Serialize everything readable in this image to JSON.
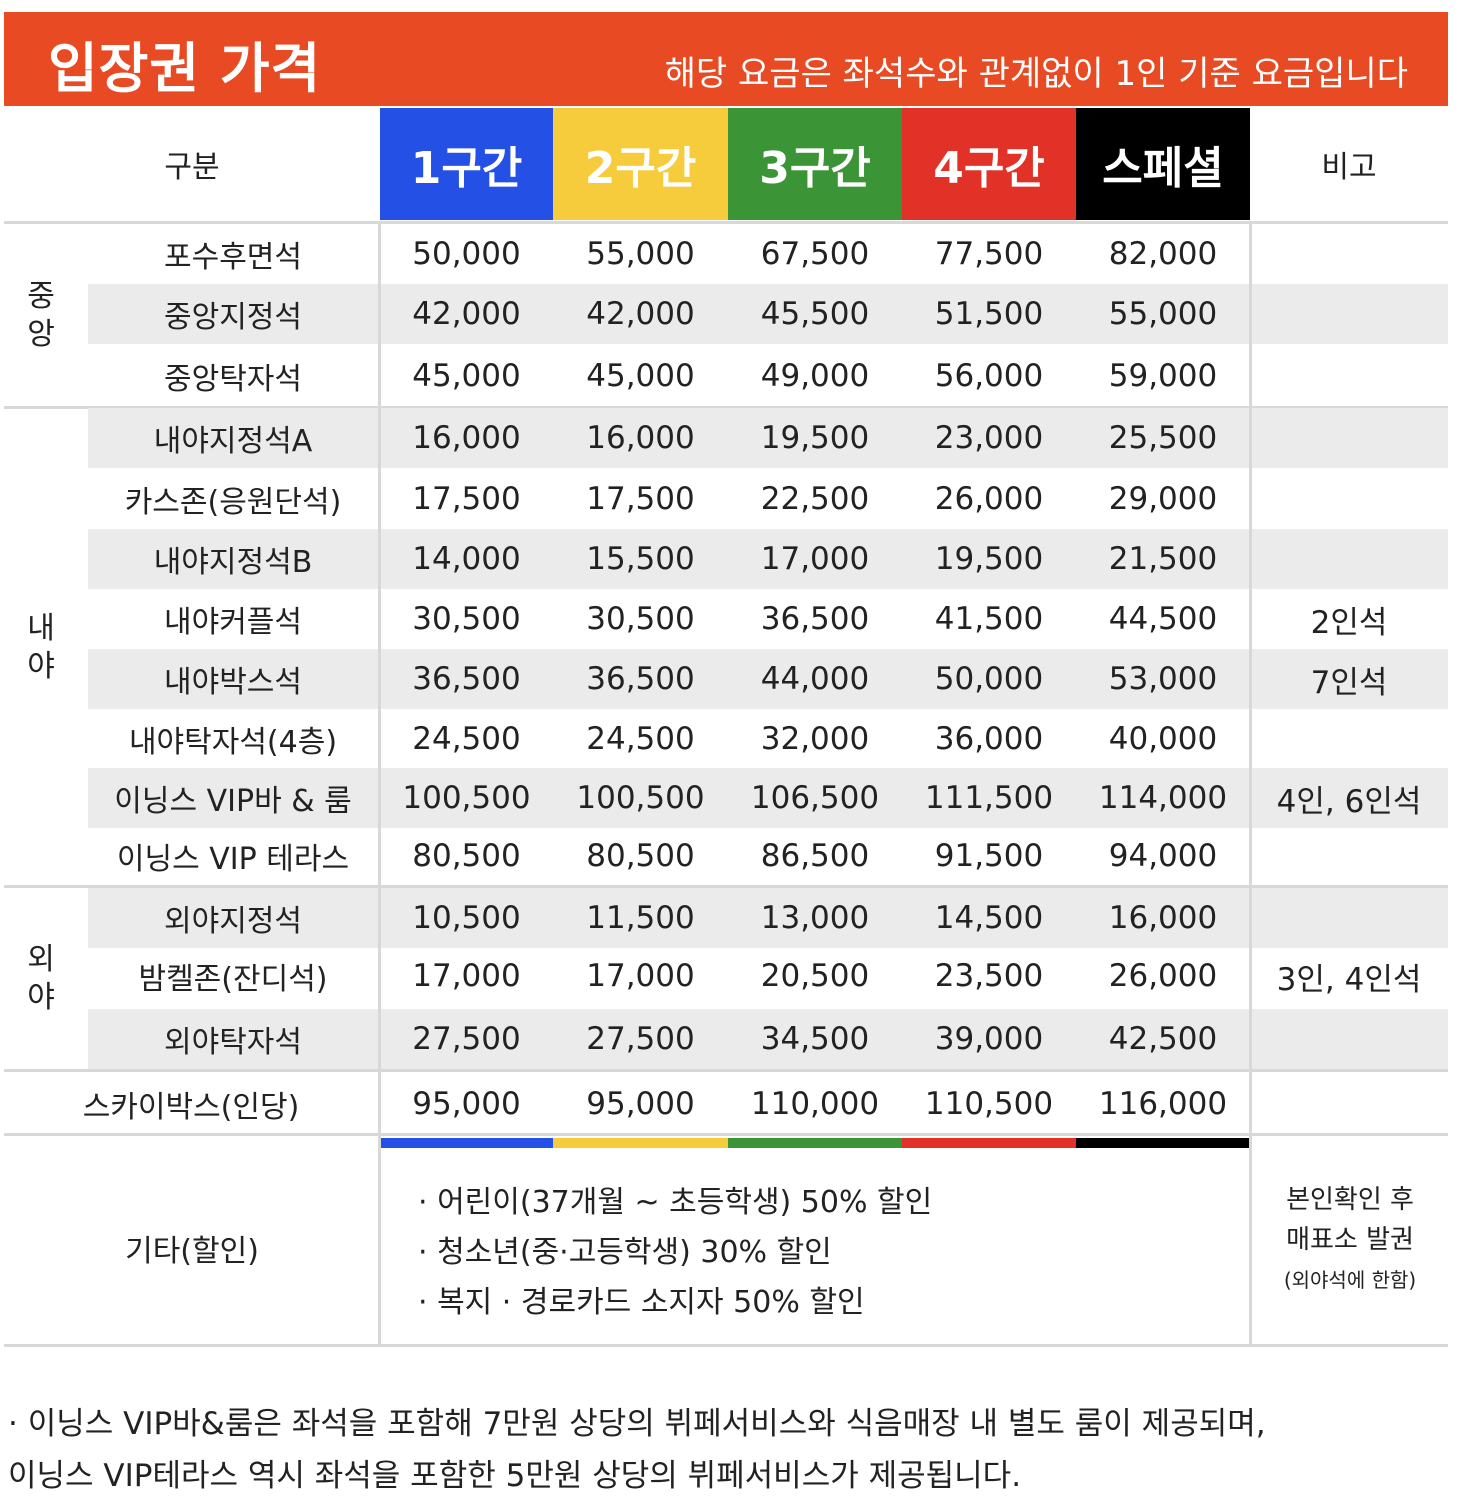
{
  "header": {
    "title": "입장권 가격",
    "subtitle": "해당 요금은 좌석수와 관계없이 1인 기준 요금입니다"
  },
  "columns": {
    "category": "구분",
    "zones": [
      {
        "label": "1구간",
        "color": "#2450e6"
      },
      {
        "label": "2구간",
        "color": "#f6cc3c"
      },
      {
        "label": "3구간",
        "color": "#3b9537"
      },
      {
        "label": "4구간",
        "color": "#e23227"
      },
      {
        "label": "스페셜",
        "color": "#000000"
      }
    ],
    "note": "비고"
  },
  "groups": [
    {
      "label": [
        "중",
        "앙"
      ],
      "rows": [
        {
          "seat": "포수후면석",
          "prices": [
            "50,000",
            "55,000",
            "67,500",
            "77,500",
            "82,000"
          ],
          "note": ""
        },
        {
          "seat": "중앙지정석",
          "prices": [
            "42,000",
            "42,000",
            "45,500",
            "51,500",
            "55,000"
          ],
          "note": ""
        },
        {
          "seat": "중앙탁자석",
          "prices": [
            "45,000",
            "45,000",
            "49,000",
            "56,000",
            "59,000"
          ],
          "note": ""
        }
      ]
    },
    {
      "label": [
        "내",
        "야"
      ],
      "rows": [
        {
          "seat": "내야지정석A",
          "prices": [
            "16,000",
            "16,000",
            "19,500",
            "23,000",
            "25,500"
          ],
          "note": ""
        },
        {
          "seat": "카스존(응원단석)",
          "prices": [
            "17,500",
            "17,500",
            "22,500",
            "26,000",
            "29,000"
          ],
          "note": ""
        },
        {
          "seat": "내야지정석B",
          "prices": [
            "14,000",
            "15,500",
            "17,000",
            "19,500",
            "21,500"
          ],
          "note": ""
        },
        {
          "seat": "내야커플석",
          "prices": [
            "30,500",
            "30,500",
            "36,500",
            "41,500",
            "44,500"
          ],
          "note": "2인석"
        },
        {
          "seat": "내야박스석",
          "prices": [
            "36,500",
            "36,500",
            "44,000",
            "50,000",
            "53,000"
          ],
          "note": "7인석"
        },
        {
          "seat": "내야탁자석(4층)",
          "prices": [
            "24,500",
            "24,500",
            "32,000",
            "36,000",
            "40,000"
          ],
          "note": ""
        },
        {
          "seat": "이닝스 VIP바 & 룸",
          "prices": [
            "100,500",
            "100,500",
            "106,500",
            "111,500",
            "114,000"
          ],
          "note": "4인, 6인석"
        },
        {
          "seat": "이닝스 VIP 테라스",
          "prices": [
            "80,500",
            "80,500",
            "86,500",
            "91,500",
            "94,000"
          ],
          "note": ""
        }
      ]
    },
    {
      "label": [
        "외",
        "야"
      ],
      "rows": [
        {
          "seat": "외야지정석",
          "prices": [
            "10,500",
            "11,500",
            "13,000",
            "14,500",
            "16,000"
          ],
          "note": ""
        },
        {
          "seat": "밤켈존(잔디석)",
          "prices": [
            "17,000",
            "17,000",
            "20,500",
            "23,500",
            "26,000"
          ],
          "note": "3인, 4인석"
        },
        {
          "seat": "외야탁자석",
          "prices": [
            "27,500",
            "27,500",
            "34,500",
            "39,000",
            "42,500"
          ],
          "note": ""
        }
      ]
    }
  ],
  "skybox": {
    "seat": "스카이박스(인당)",
    "prices": [
      "95,000",
      "95,000",
      "110,000",
      "110,500",
      "116,000"
    ]
  },
  "misc": {
    "label": "기타(할인)",
    "items": [
      "· 어린이(37개월 ~ 초등학생) 50% 할인",
      "· 청소년(중·고등학생) 30% 할인",
      "· 복지 · 경로카드 소지자 50% 할인"
    ],
    "note_lines": [
      "본인확인 후",
      "매표소 발권"
    ],
    "note_small": "(외야석에 한함)"
  },
  "footer": [
    "· 이닝스 VIP바&룸은 좌석을 포함해 7만원 상당의 뷔페서비스와 식음매장 내 별도 룸이 제공되며,",
    "  이닝스 VIP테라스 역시 좌석을 포함한 5만원 상당의 뷔페서비스가 제공됩니다."
  ]
}
